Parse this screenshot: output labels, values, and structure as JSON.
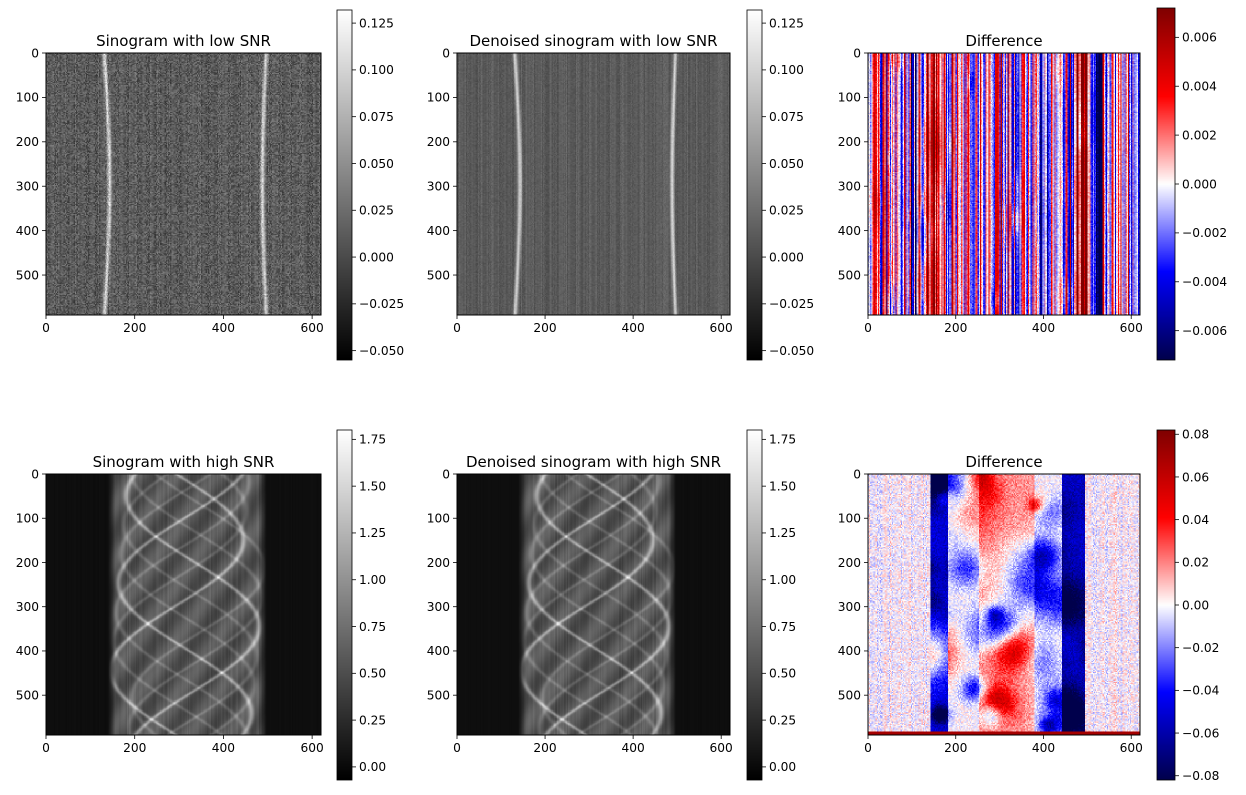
{
  "chart_data": [
    {
      "type": "heatmap",
      "title": "Sinogram with low SNR",
      "colormap": "gray",
      "xlim": [
        0,
        620
      ],
      "ylim": [
        590,
        0
      ],
      "xticks": [
        0,
        200,
        400,
        600
      ],
      "xticklabels": [
        "0",
        "200",
        "400",
        "600"
      ],
      "yticks": [
        0,
        100,
        200,
        300,
        400,
        500
      ],
      "yticklabels": [
        "0",
        "100",
        "200",
        "300",
        "400",
        "500"
      ],
      "colorbar": {
        "range": [
          -0.055,
          0.132
        ],
        "ticks": [
          -0.05,
          -0.025,
          0.0,
          0.025,
          0.05,
          0.075,
          0.1,
          0.125
        ],
        "ticklabels": [
          "−0.050",
          "−0.025",
          "0.000",
          "0.025",
          "0.050",
          "0.075",
          "0.100",
          "0.125"
        ]
      },
      "image": {
        "kind": "low",
        "features": [
          {
            "type": "bright_curve",
            "x_top": 130,
            "x_mid": 142,
            "x_bottom": 132
          },
          {
            "type": "bright_curve",
            "x_top": 495,
            "x_mid": 487,
            "x_bottom": 496
          }
        ]
      }
    },
    {
      "type": "heatmap",
      "title": "Denoised sinogram with low SNR",
      "colormap": "gray",
      "xlim": [
        0,
        620
      ],
      "ylim": [
        590,
        0
      ],
      "xticks": [
        0,
        200,
        400,
        600
      ],
      "xticklabels": [
        "0",
        "200",
        "400",
        "600"
      ],
      "yticks": [
        0,
        100,
        200,
        300,
        400,
        500
      ],
      "yticklabels": [
        "0",
        "100",
        "200",
        "300",
        "400",
        "500"
      ],
      "colorbar": {
        "range": [
          -0.055,
          0.132
        ],
        "ticks": [
          -0.05,
          -0.025,
          0.0,
          0.025,
          0.05,
          0.075,
          0.1,
          0.125
        ],
        "ticklabels": [
          "−0.050",
          "−0.025",
          "0.000",
          "0.025",
          "0.050",
          "0.075",
          "0.100",
          "0.125"
        ]
      },
      "image": {
        "kind": "low_denoised",
        "features": [
          {
            "type": "bright_curve",
            "x_top": 130,
            "x_mid": 142,
            "x_bottom": 132
          },
          {
            "type": "bright_curve",
            "x_top": 495,
            "x_mid": 487,
            "x_bottom": 496
          }
        ]
      }
    },
    {
      "type": "heatmap",
      "title": "Difference",
      "colormap": "seismic",
      "xlim": [
        0,
        620
      ],
      "ylim": [
        590,
        0
      ],
      "xticks": [
        0,
        200,
        400,
        600
      ],
      "xticklabels": [
        "0",
        "200",
        "400",
        "600"
      ],
      "yticks": [
        0,
        100,
        200,
        300,
        400,
        500
      ],
      "yticklabels": [
        "0",
        "100",
        "200",
        "300",
        "400",
        "500"
      ],
      "colorbar": {
        "range": [
          -0.0072,
          0.0072
        ],
        "ticks": [
          -0.006,
          -0.004,
          -0.002,
          0.0,
          0.002,
          0.004,
          0.006
        ],
        "ticklabels": [
          "−0.006",
          "−0.004",
          "−0.002",
          "0.000",
          "0.002",
          "0.004",
          "0.006"
        ]
      },
      "image": {
        "kind": "diff_low"
      }
    },
    {
      "type": "heatmap",
      "title": "Sinogram with high SNR",
      "colormap": "gray",
      "xlim": [
        0,
        620
      ],
      "ylim": [
        590,
        0
      ],
      "xticks": [
        0,
        200,
        400,
        600
      ],
      "xticklabels": [
        "0",
        "200",
        "400",
        "600"
      ],
      "yticks": [
        0,
        100,
        200,
        300,
        400,
        500
      ],
      "yticklabels": [
        "0",
        "100",
        "200",
        "300",
        "400",
        "500"
      ],
      "colorbar": {
        "range": [
          -0.07,
          1.8
        ],
        "ticks": [
          0.0,
          0.25,
          0.5,
          0.75,
          1.0,
          1.25,
          1.5,
          1.75
        ],
        "ticklabels": [
          "0.00",
          "0.25",
          "0.50",
          "0.75",
          "1.00",
          "1.25",
          "1.50",
          "1.75"
        ]
      },
      "image": {
        "kind": "high",
        "object_x_range": [
          145,
          490
        ]
      }
    },
    {
      "type": "heatmap",
      "title": "Denoised sinogram with high SNR",
      "colormap": "gray",
      "xlim": [
        0,
        620
      ],
      "ylim": [
        590,
        0
      ],
      "xticks": [
        0,
        200,
        400,
        600
      ],
      "xticklabels": [
        "0",
        "200",
        "400",
        "600"
      ],
      "yticks": [
        0,
        100,
        200,
        300,
        400,
        500
      ],
      "yticklabels": [
        "0",
        "100",
        "200",
        "300",
        "400",
        "500"
      ],
      "colorbar": {
        "range": [
          -0.07,
          1.8
        ],
        "ticks": [
          0.0,
          0.25,
          0.5,
          0.75,
          1.0,
          1.25,
          1.5,
          1.75
        ],
        "ticklabels": [
          "0.00",
          "0.25",
          "0.50",
          "0.75",
          "1.00",
          "1.25",
          "1.50",
          "1.75"
        ]
      },
      "image": {
        "kind": "high",
        "object_x_range": [
          145,
          490
        ]
      }
    },
    {
      "type": "heatmap",
      "title": "Difference",
      "colormap": "seismic",
      "xlim": [
        0,
        620
      ],
      "ylim": [
        590,
        0
      ],
      "xticks": [
        0,
        200,
        400,
        600
      ],
      "xticklabels": [
        "0",
        "200",
        "400",
        "600"
      ],
      "yticks": [
        0,
        100,
        200,
        300,
        400,
        500
      ],
      "yticklabels": [
        "0",
        "100",
        "200",
        "300",
        "400",
        "500"
      ],
      "colorbar": {
        "range": [
          -0.082,
          0.082
        ],
        "ticks": [
          -0.08,
          -0.06,
          -0.04,
          -0.02,
          0.0,
          0.02,
          0.04,
          0.06,
          0.08
        ],
        "ticklabels": [
          "−0.08",
          "−0.06",
          "−0.04",
          "−0.02",
          "0.00",
          "0.02",
          "0.04",
          "0.06",
          "0.08"
        ]
      },
      "image": {
        "kind": "diff_high",
        "object_x_range": [
          145,
          490
        ]
      }
    }
  ]
}
